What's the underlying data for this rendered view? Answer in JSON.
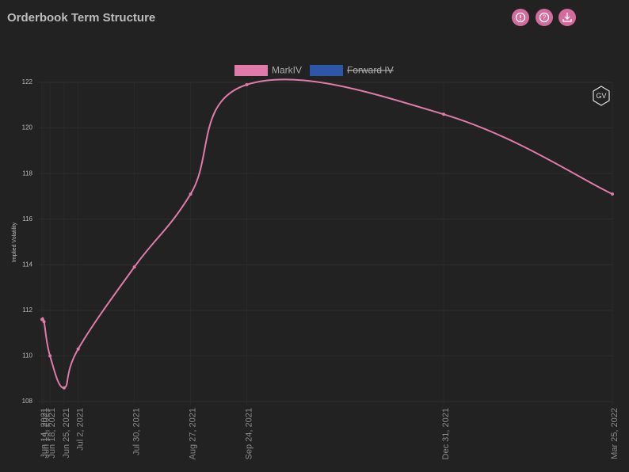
{
  "header": {
    "title": "Orderbook Term Structure",
    "watermark": "GV"
  },
  "chart_data": {
    "type": "line",
    "y_label": "Implied Volatility",
    "x": [
      "Jun 14, 2021",
      "Jun 15, 2021",
      "Jun 18, 2021",
      "Jun 25, 2021",
      "Jul 2, 2021",
      "Jul 30, 2021",
      "Aug 27, 2021",
      "Sep 24, 2021",
      "Dec 31, 2021",
      "Mar 25, 2022"
    ],
    "series": [
      {
        "name": "MarkIV",
        "color": "#e07aaa",
        "values": [
          111.6,
          111.5,
          110.0,
          108.6,
          110.3,
          113.9,
          117.1,
          121.9,
          120.6,
          117.1
        ]
      },
      {
        "name": "Forward IV",
        "color": "#2d55a8",
        "hidden": true,
        "values": [
          null,
          null,
          null,
          null,
          null,
          null,
          null,
          null,
          null,
          null
        ]
      }
    ],
    "ylim": [
      108,
      122
    ],
    "yticks": [
      108,
      110,
      112,
      114,
      116,
      118,
      120,
      122
    ],
    "grid": true,
    "legend": "top"
  }
}
